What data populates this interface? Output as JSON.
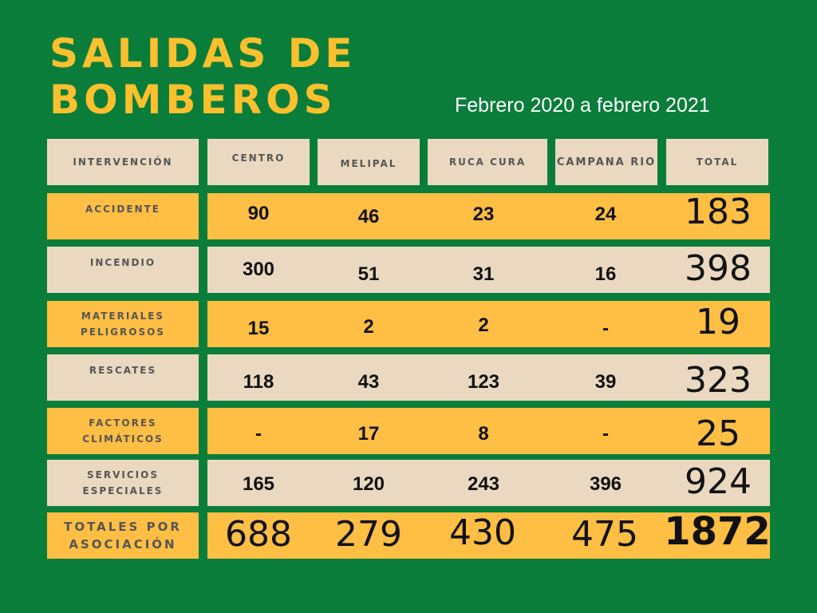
{
  "title_line1": "SALIDAS DE",
  "title_line2": "BOMBEROS",
  "subtitle": "Febrero 2020 a febrero 2021",
  "headers": {
    "intervention": "INTERVENCIÓN",
    "centro": "CENTRO",
    "melipal": "MELIPAL",
    "ruca_cura": "RUCA CURA",
    "campana_rio": "CAMPANA RIO",
    "total": "TOTAL"
  },
  "rows": [
    {
      "label": "ACCIDENTE",
      "centro": "90",
      "melipal": "46",
      "ruca_cura": "23",
      "campana_rio": "24",
      "total": "183"
    },
    {
      "label": "INCENDIO",
      "centro": "300",
      "melipal": "51",
      "ruca_cura": "31",
      "campana_rio": "16",
      "total": "398"
    },
    {
      "label": "MATERIALES PELIGROSOS",
      "centro": "15",
      "melipal": "2",
      "ruca_cura": "2",
      "campana_rio": "-",
      "total": "19"
    },
    {
      "label": "RESCATES",
      "centro": "118",
      "melipal": "43",
      "ruca_cura": "123",
      "campana_rio": "39",
      "total": "323"
    },
    {
      "label": "FACTORES CLIMÁTICOS",
      "centro": "-",
      "melipal": "17",
      "ruca_cura": "8",
      "campana_rio": "-",
      "total": "25"
    },
    {
      "label": "SERVICIOS ESPECIALES",
      "centro": "165",
      "melipal": "120",
      "ruca_cura": "243",
      "campana_rio": "396",
      "total": "924"
    }
  ],
  "totals": {
    "label": "TOTALES POR ASOCIACIÓN",
    "centro": "688",
    "melipal": "279",
    "ruca_cura": "430",
    "campana_rio": "475",
    "total": "1872"
  },
  "colors": {
    "background": "#0b7d3a",
    "title": "#fbc02d",
    "orange": "#ffbe44",
    "beige": "#ead9c0"
  }
}
